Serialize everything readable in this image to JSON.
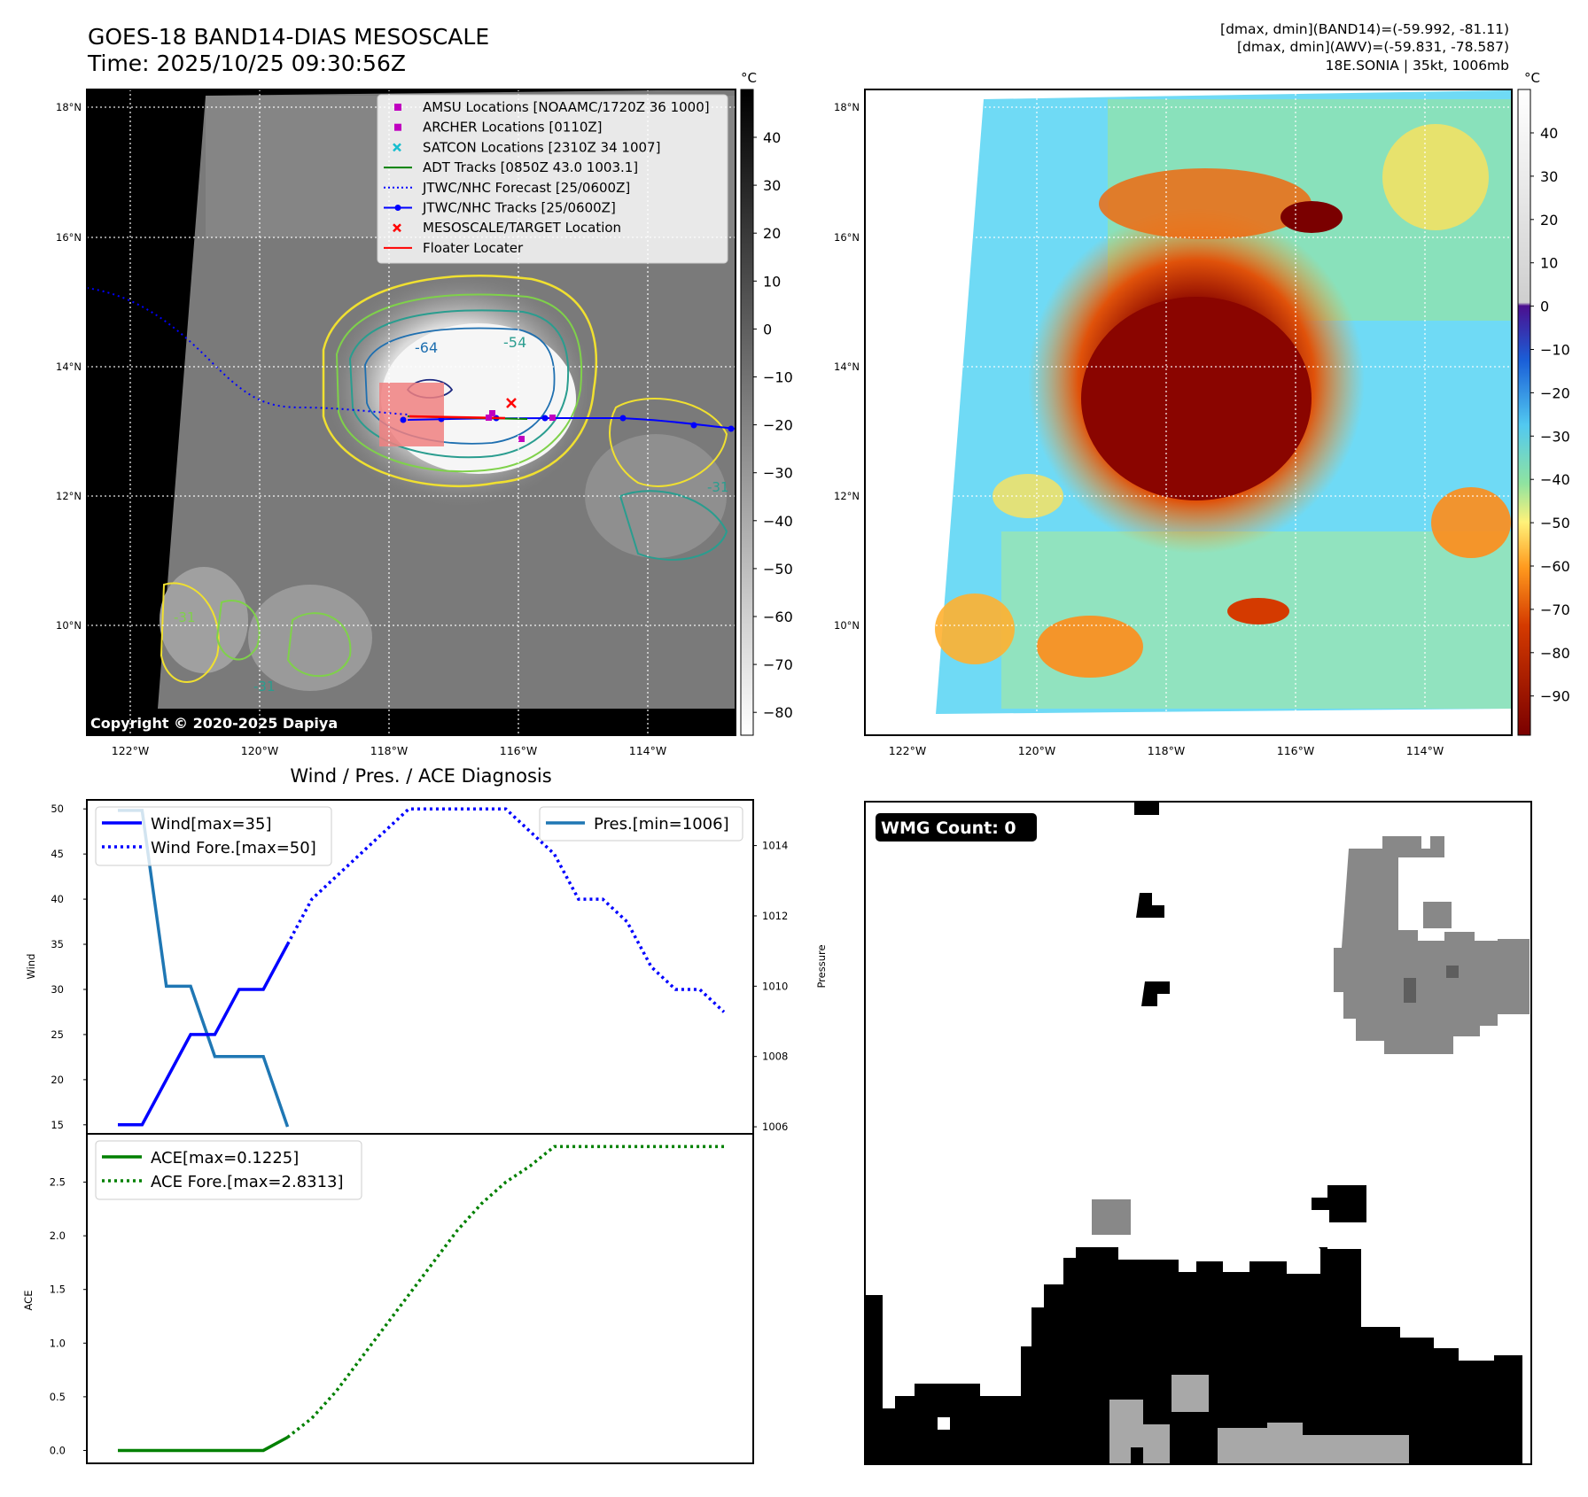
{
  "header": {
    "title": "GOES-18 BAND14-DIAS MESOSCALE",
    "time": "Time: 2025/10/25 09:30:56Z",
    "stats_line1": "[dmax, dmin](BAND14)=(-59.992, -81.11)",
    "stats_line2": "[dmax, dmin](AWV)=(-59.831, -78.587)",
    "stats_line3": "18E.SONIA | 35kt, 1006mb"
  },
  "map_axes": {
    "lat_ticks": [
      "18°N",
      "16°N",
      "14°N",
      "12°N",
      "10°N"
    ],
    "lon_ticks": [
      "122°W",
      "120°W",
      "118°W",
      "116°W",
      "114°W"
    ],
    "copyright": "Copyright © 2020-2025 Dapiya"
  },
  "colorbar_gray": {
    "unit": "°C",
    "ticks": [
      "40",
      "30",
      "20",
      "10",
      "0",
      "−10",
      "−20",
      "−30",
      "−40",
      "−50",
      "−60",
      "−70",
      "−80"
    ]
  },
  "colorbar_ir": {
    "unit": "°C",
    "ticks": [
      "40",
      "30",
      "20",
      "10",
      "0",
      "−10",
      "−20",
      "−30",
      "−40",
      "−50",
      "−60",
      "−70",
      "−80",
      "−90"
    ]
  },
  "legend_map": [
    {
      "label": "AMSU Locations [NOAAMC/1720Z 36 1000]",
      "marker": "square",
      "color": "#c000c0"
    },
    {
      "label": "ARCHER Locations [0110Z]",
      "marker": "square",
      "color": "#c000c0"
    },
    {
      "label": "SATCON Locations [2310Z 34 1007]",
      "marker": "x",
      "color": "#17becf"
    },
    {
      "label": "ADT Tracks [0850Z 43.0 1003.1]",
      "marker": "line",
      "color": "#008000"
    },
    {
      "label": "JTWC/NHC Forecast [25/0600Z]",
      "marker": "dotted",
      "color": "#0000ff"
    },
    {
      "label": "JTWC/NHC Tracks [25/0600Z]",
      "marker": "line-dot",
      "color": "#0000ff"
    },
    {
      "label": "MESOSCALE/TARGET Location",
      "marker": "x",
      "color": "#ff0000"
    },
    {
      "label": "Floater Locater",
      "marker": "line",
      "color": "#ff0000"
    }
  ],
  "contour_labels": [
    "-64",
    "-54",
    "-31",
    "-31",
    "-31"
  ],
  "diag": {
    "title": "Wind / Pres. / ACE Diagnosis",
    "wind_label": "Wind[max=35]",
    "wind_fore_label": "Wind Fore.[max=50]",
    "pres_label": "Pres.[min=1006]",
    "ace_label": "ACE[max=0.1225]",
    "ace_fore_label": "ACE Fore.[max=2.8313]",
    "ylabel_wind": "Wind",
    "ylabel_pres": "Pressure",
    "ylabel_ace": "ACE",
    "wind_ticks": [
      "50",
      "45",
      "40",
      "35",
      "30",
      "25",
      "20",
      "15"
    ],
    "pres_ticks": [
      "1014",
      "1012",
      "1010",
      "1008",
      "1006"
    ],
    "ace_ticks": [
      "2.5",
      "2.0",
      "1.5",
      "1.0",
      "0.5",
      "0.0"
    ]
  },
  "wmg": {
    "label": "WMG Count: 0"
  },
  "chart_data": [
    {
      "type": "line",
      "name": "wind-pressure",
      "x": [
        0,
        1,
        2,
        3,
        4,
        5,
        6,
        7,
        8,
        9,
        10,
        11,
        12,
        13,
        14,
        15,
        16,
        17,
        18,
        19,
        20,
        21,
        22,
        23,
        24,
        25
      ],
      "series": [
        {
          "name": "Wind[max=35]",
          "axis": "left",
          "style": "solid",
          "color": "#0000ff",
          "x": [
            0,
            1,
            2,
            3,
            4,
            5,
            6,
            7
          ],
          "values": [
            15,
            15,
            20,
            25,
            25,
            30,
            30,
            35
          ]
        },
        {
          "name": "Wind Fore.[max=50]",
          "axis": "left",
          "style": "dotted",
          "color": "#0000ff",
          "x": [
            7,
            8,
            9,
            10,
            11,
            12,
            13,
            14,
            15,
            16,
            17,
            18,
            19,
            20,
            21,
            22,
            23,
            24,
            25
          ],
          "values": [
            35,
            40,
            42.5,
            45,
            47.5,
            50,
            50,
            50,
            50,
            50,
            47.5,
            45,
            40,
            40,
            37.5,
            32.5,
            30,
            30,
            27.5
          ]
        },
        {
          "name": "Pres.[min=1006]",
          "axis": "right",
          "style": "solid",
          "color": "#1f77b4",
          "x": [
            0,
            1,
            2,
            3,
            4,
            5,
            6,
            7
          ],
          "values": [
            1015,
            1015,
            1010,
            1010,
            1008,
            1008,
            1008,
            1006
          ]
        }
      ],
      "ylim_left": [
        14,
        51
      ],
      "ylim_right": [
        1005.8,
        1015.3
      ]
    },
    {
      "type": "line",
      "name": "ace",
      "series": [
        {
          "name": "ACE[max=0.1225]",
          "style": "solid",
          "color": "#008000",
          "x": [
            0,
            1,
            2,
            3,
            4,
            5,
            6,
            7
          ],
          "values": [
            0,
            0,
            0,
            0,
            0,
            0,
            0,
            0.1225
          ]
        },
        {
          "name": "ACE Fore.[max=2.8313]",
          "style": "dotted",
          "color": "#008000",
          "x": [
            7,
            8,
            9,
            10,
            11,
            12,
            13,
            14,
            15,
            16,
            17,
            18,
            19,
            20,
            21,
            22,
            23,
            24,
            25
          ],
          "values": [
            0.1225,
            0.3,
            0.55,
            0.85,
            1.15,
            1.45,
            1.75,
            2.05,
            2.3,
            2.5,
            2.65,
            2.8313,
            2.8313,
            2.8313,
            2.8313,
            2.8313,
            2.8313,
            2.8313,
            2.8313
          ]
        }
      ],
      "ylim": [
        -0.12,
        2.95
      ]
    }
  ]
}
